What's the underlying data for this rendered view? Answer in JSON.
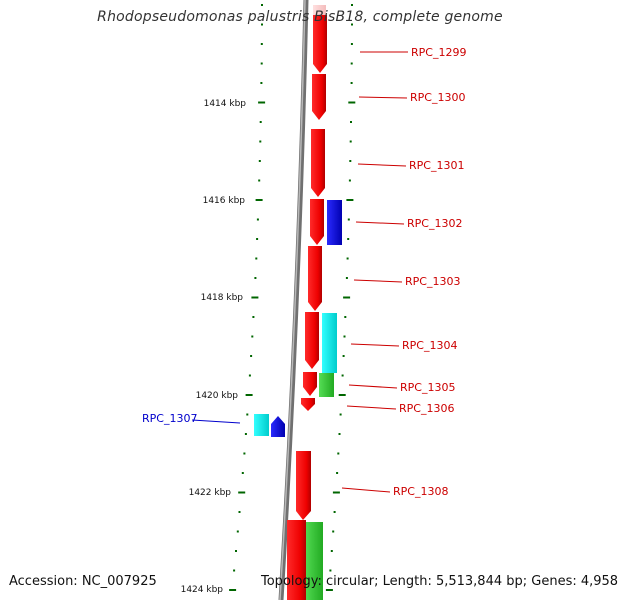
{
  "title": "Rhodopseudomonas palustris BisB18, complete genome",
  "accession": "Accession: NC_007925",
  "summary": "Topology: circular; Length: 5,513,844 bp; Genes: 4,958",
  "colors": {
    "forward_gene": "#ff0000",
    "reverse_gene": "#0000ff",
    "cyan_feature": "#00ffff",
    "green_feature": "#33cc33",
    "tick": "#006600",
    "backbone": "#808080",
    "label_red": "#cc0000",
    "label_blue": "#0000cc"
  },
  "axis_ticks": [
    {
      "label": "1414 kbp",
      "kbp": 1414
    },
    {
      "label": "1416 kbp",
      "kbp": 1416
    },
    {
      "label": "1418 kbp",
      "kbp": 1418
    },
    {
      "label": "1420 kbp",
      "kbp": 1420
    },
    {
      "label": "1422 kbp",
      "kbp": 1422
    },
    {
      "label": "1424 kbp",
      "kbp": 1424
    }
  ],
  "genes": [
    {
      "label": "RPC_1299",
      "strand": "forward"
    },
    {
      "label": "RPC_1300",
      "strand": "forward"
    },
    {
      "label": "RPC_1301",
      "strand": "forward"
    },
    {
      "label": "RPC_1302",
      "strand": "forward"
    },
    {
      "label": "RPC_1303",
      "strand": "forward"
    },
    {
      "label": "RPC_1304",
      "strand": "forward"
    },
    {
      "label": "RPC_1305",
      "strand": "forward"
    },
    {
      "label": "RPC_1306",
      "strand": "forward"
    },
    {
      "label": "RPC_1307",
      "strand": "reverse"
    },
    {
      "label": "RPC_1308",
      "strand": "forward"
    }
  ]
}
